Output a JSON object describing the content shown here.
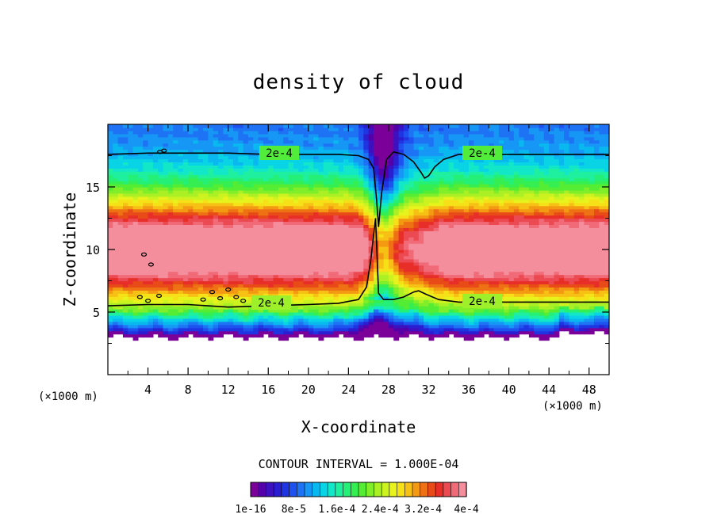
{
  "chart_data": {
    "type": "heatmap",
    "title": "density of cloud",
    "xlabel": "X-coordinate",
    "ylabel": "Z-coordinate",
    "x_unit": "(×1000 m)",
    "y_unit": "(×1000 m)",
    "xlim": [
      0,
      50
    ],
    "ylim": [
      0,
      20
    ],
    "xticks": [
      "4",
      "8",
      "12",
      "16",
      "20",
      "24",
      "28",
      "32",
      "36",
      "40",
      "44",
      "48"
    ],
    "yticks": [
      "5",
      "10",
      "15"
    ],
    "contour_interval_text": "CONTOUR INTERVAL = 1.000E-04",
    "contour_label": "2e-4",
    "contour_level": 0.0002,
    "upper_contour": {
      "x": [
        0,
        4,
        8,
        12,
        16,
        20,
        23,
        25,
        26,
        26.5,
        26.8,
        27,
        27.3,
        27.8,
        28.5,
        29.5,
        30.5,
        31.2,
        31.6,
        32,
        32.6,
        33.5,
        35,
        40,
        45,
        50
      ],
      "z": [
        17.6,
        17.7,
        17.7,
        17.7,
        17.6,
        17.6,
        17.6,
        17.5,
        17.2,
        16.5,
        14.0,
        11.8,
        14.5,
        17.2,
        17.8,
        17.6,
        17.0,
        16.2,
        15.7,
        15.9,
        16.6,
        17.2,
        17.6,
        17.6,
        17.6,
        17.6
      ]
    },
    "lower_contour": {
      "x": [
        0,
        4,
        8,
        12,
        16,
        20,
        23,
        25,
        25.8,
        26.2,
        26.7,
        27,
        27.5,
        28.5,
        29.5,
        30.5,
        31,
        31.8,
        33,
        35,
        40,
        45,
        50
      ],
      "z": [
        5.5,
        5.6,
        5.6,
        5.4,
        5.5,
        5.6,
        5.7,
        6.0,
        7.0,
        9.0,
        12.5,
        6.5,
        6.0,
        6.0,
        6.2,
        6.6,
        6.7,
        6.4,
        6.0,
        5.8,
        5.8,
        5.8,
        5.8
      ]
    },
    "colorbar": {
      "colors": [
        "#7a0099",
        "#5400a8",
        "#3d11bf",
        "#2a1ed0",
        "#1f35e2",
        "#1e52ee",
        "#1e73f4",
        "#1696f5",
        "#0ab8f0",
        "#08d4e6",
        "#12e8c8",
        "#1ef0a0",
        "#24f078",
        "#34ee52",
        "#55ec34",
        "#80ee28",
        "#aaf024",
        "#ccf220",
        "#e8f21c",
        "#f6e018",
        "#f6c014",
        "#f39a12",
        "#ee7214",
        "#e84a18",
        "#e82e28",
        "#ec4a52",
        "#f06a78",
        "#f58e9c"
      ],
      "labels": [
        "1e-16",
        "8e-5",
        "1.6e-4",
        "2.4e-4",
        "3.2e-4",
        "4e-4"
      ]
    }
  }
}
